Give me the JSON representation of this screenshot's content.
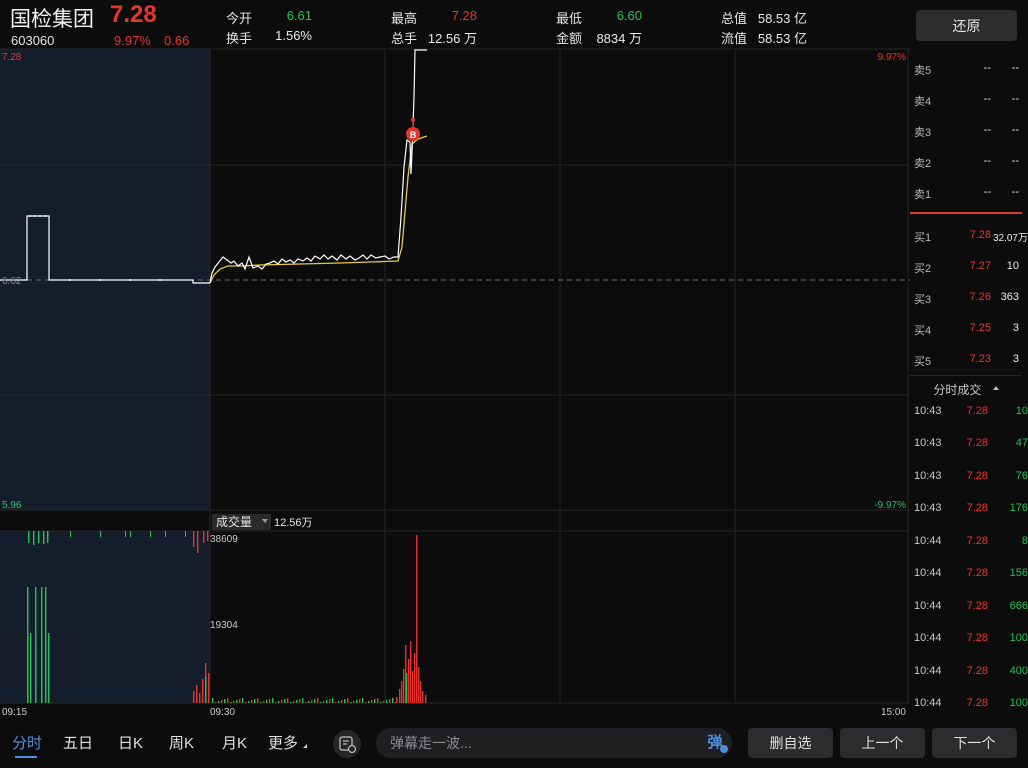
{
  "header": {
    "name": "国检集团",
    "price": "7.28",
    "code": "603060",
    "change_pct": "9.97%",
    "change_val": "0.66",
    "stats": [
      {
        "label": "今开",
        "value": "6.61",
        "color": "green"
      },
      {
        "label": "换手",
        "value": "1.56%",
        "color": "white"
      },
      {
        "label": "最高",
        "value": "7.28",
        "color": "red"
      },
      {
        "label": "总手",
        "value": "12.56 万",
        "color": "white"
      },
      {
        "label": "最低",
        "value": "6.60",
        "color": "green"
      },
      {
        "label": "金额",
        "value": "8834 万",
        "color": "white"
      },
      {
        "label": "总值",
        "value": "58.53 亿",
        "color": "white"
      },
      {
        "label": "流值",
        "value": "58.53 亿",
        "color": "white"
      }
    ],
    "restore_label": "还原"
  },
  "chart": {
    "price_high": "7.28",
    "price_mid": "6.62",
    "price_low": "5.96",
    "pct_high": "9.97%",
    "pct_low": "-9.97%",
    "volume_label": "成交量",
    "volume_total": "12.56万",
    "vol_max": "38609",
    "vol_mid": "19304",
    "time_start": "09:15",
    "time_open": "09:30",
    "time_end": "15:00",
    "buy_marker": "B",
    "colors": {
      "up": "#e8352c",
      "down": "#23c35a",
      "price_line": "#ffffff",
      "avg_line": "#e6c84a",
      "preopen_bg": "#141d2b"
    }
  },
  "chart_data": {
    "type": "line",
    "x": [
      "09:15",
      "09:20",
      "09:25",
      "09:30",
      "09:35",
      "09:45",
      "10:00",
      "10:15",
      "10:30",
      "10:35",
      "10:38",
      "10:40",
      "10:41",
      "10:43"
    ],
    "series": [
      {
        "values": [
          6.62,
          6.77,
          6.62,
          6.61,
          6.66,
          6.65,
          6.66,
          6.67,
          6.68,
          6.69,
          7.04,
          7.08,
          7.1,
          7.28
        ]
      },
      {
        "values": [
          null,
          null,
          null,
          6.61,
          6.64,
          6.64,
          6.65,
          6.66,
          6.67,
          6.67,
          6.72,
          7.05,
          7.08,
          7.09
        ]
      }
    ],
    "ylim": [
      5.96,
      7.28
    ],
    "volume": {
      "max": 38609,
      "mid": 19304,
      "total": "12.56万"
    }
  },
  "asks": [
    {
      "label": "卖5",
      "price": "--",
      "qty": "--"
    },
    {
      "label": "卖4",
      "price": "--",
      "qty": "--"
    },
    {
      "label": "卖3",
      "price": "--",
      "qty": "--"
    },
    {
      "label": "卖2",
      "price": "--",
      "qty": "--"
    },
    {
      "label": "卖1",
      "price": "--",
      "qty": "--"
    }
  ],
  "bids": [
    {
      "label": "买1",
      "price": "7.28",
      "qty": "32.07万"
    },
    {
      "label": "买2",
      "price": "7.27",
      "qty": "10"
    },
    {
      "label": "买3",
      "price": "7.26",
      "qty": "363"
    },
    {
      "label": "买4",
      "price": "7.25",
      "qty": "3"
    },
    {
      "label": "买5",
      "price": "7.23",
      "qty": "3"
    }
  ],
  "trades_title": "分时成交",
  "trades": [
    {
      "time": "10:43",
      "price": "7.28",
      "vol": "10",
      "color": "green"
    },
    {
      "time": "10:43",
      "price": "7.28",
      "vol": "47",
      "color": "green"
    },
    {
      "time": "10:43",
      "price": "7.28",
      "vol": "76",
      "color": "green"
    },
    {
      "time": "10:43",
      "price": "7.28",
      "vol": "176",
      "color": "green"
    },
    {
      "time": "10:44",
      "price": "7.28",
      "vol": "8",
      "color": "green"
    },
    {
      "time": "10:44",
      "price": "7.28",
      "vol": "156",
      "color": "green"
    },
    {
      "time": "10:44",
      "price": "7.28",
      "vol": "666",
      "color": "green"
    },
    {
      "time": "10:44",
      "price": "7.28",
      "vol": "100",
      "color": "green"
    },
    {
      "time": "10:44",
      "price": "7.28",
      "vol": "400",
      "color": "green"
    },
    {
      "time": "10:44",
      "price": "7.28",
      "vol": "100",
      "color": "green"
    }
  ],
  "tabs": [
    "分时",
    "五日",
    "日K",
    "周K",
    "月K",
    "更多"
  ],
  "danmu_placeholder": "弹幕走一波...",
  "danmu_toggle": "弹",
  "buttons": {
    "del_watch": "删自选",
    "prev": "上一个",
    "next": "下一个"
  }
}
